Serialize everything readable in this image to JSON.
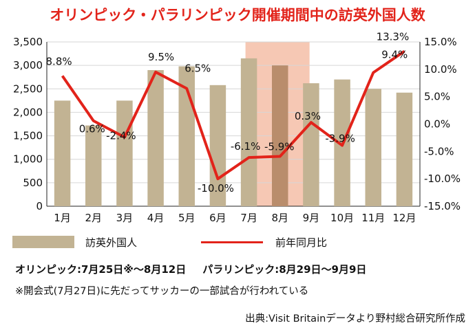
{
  "chart_data": {
    "type": "bar+line",
    "title": "オリンピック・パラリンピック開催期間中の訪英外国人数",
    "categories": [
      "1月",
      "2月",
      "3月",
      "4月",
      "5月",
      "6月",
      "7月",
      "8月",
      "9月",
      "10月",
      "11月",
      "12月"
    ],
    "series": [
      {
        "name": "訪英外国人",
        "type": "bar",
        "axis": "left",
        "values": [
          2250,
          1720,
          2250,
          2900,
          2980,
          2580,
          3150,
          3000,
          2620,
          2700,
          2500,
          2420
        ]
      },
      {
        "name": "前年同月比",
        "type": "line",
        "axis": "right",
        "values": [
          8.8,
          0.6,
          -2.4,
          9.5,
          6.5,
          -10.0,
          -6.1,
          -5.9,
          0.3,
          -3.9,
          9.4,
          13.3
        ]
      }
    ],
    "point_labels": [
      "8.8%",
      "0.6%",
      "-2.4%",
      "9.5%",
      "6.5%",
      "-10.0%",
      "-6.1%",
      "-5.9%",
      "0.3%",
      "-3.9%",
      "9.4%",
      "13.3%"
    ],
    "left_axis": {
      "ylim": [
        0,
        3500
      ],
      "ticks": [
        "0",
        "500",
        "1,000",
        "1,500",
        "2,000",
        "2,500",
        "3,000",
        "3,500"
      ]
    },
    "right_axis": {
      "ylim": [
        -15,
        15
      ],
      "ticks": [
        "-15.0%",
        "-10.0%",
        "-5.0%",
        "0.0%",
        "5.0%",
        "10.0%",
        "15.0%"
      ]
    },
    "highlight": {
      "from_category": "7月",
      "to_category": "9月"
    },
    "colors": {
      "bar": "#c2b393",
      "bar_highlight": "#b98d6c",
      "line": "#e2231a",
      "highlight": "#f6c8b4"
    }
  },
  "legend": {
    "bars_label": "訪英外国人",
    "line_label": "前年同月比"
  },
  "notes": {
    "olympic": "オリンピック:7月25日※〜8月12日",
    "paralympic": "パラリンピック:8月29日〜9月9日",
    "footnote": "※開会式(7月27日)に先だってサッカーの一部試合が行われている"
  },
  "source": "出典:Visit Britainデータより野村総合研究所作成"
}
